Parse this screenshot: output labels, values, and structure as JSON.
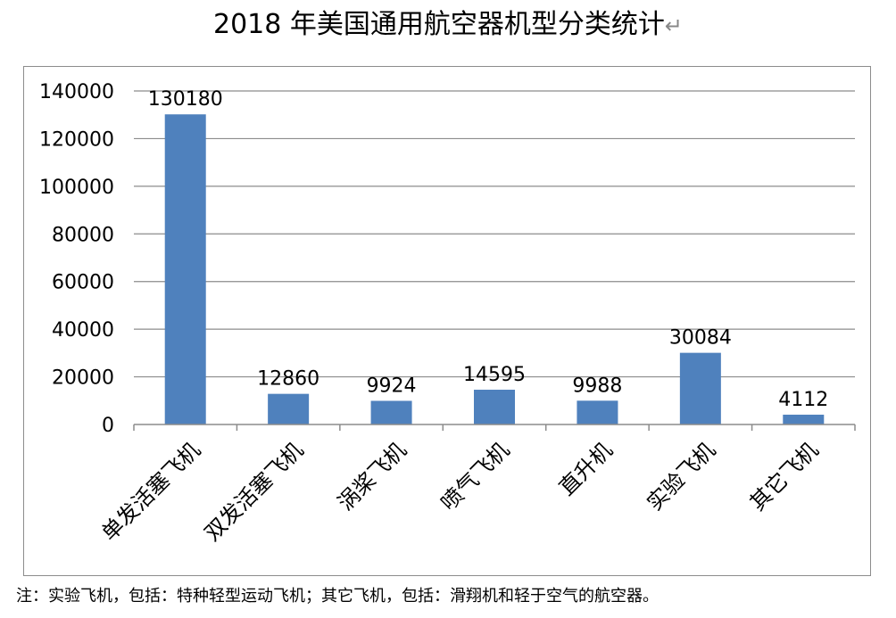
{
  "title": "2018 年美国通用航空器机型分类统计",
  "title_mark": "↵",
  "note": "注：实验飞机，包括：特种轻型运动飞机；其它飞机，包括：滑翔机和轻于空气的航空器。",
  "colors": {
    "bar": "#4f81bd",
    "grid": "#8c8c8c",
    "frame": "#8c8c8c"
  },
  "chart_data": {
    "type": "bar",
    "title": "2018 年美国通用航空器机型分类统计",
    "xlabel": "",
    "ylabel": "",
    "categories": [
      "单发活塞飞机",
      "双发活塞飞机",
      "涡桨飞机",
      "喷气飞机",
      "直升机",
      "实验飞机",
      "其它飞机"
    ],
    "values": [
      130180,
      12860,
      9924,
      14595,
      9988,
      30084,
      4112
    ],
    "ylim": [
      0,
      140000
    ],
    "yticks": [
      0,
      20000,
      40000,
      60000,
      80000,
      100000,
      120000,
      140000
    ],
    "grid": true,
    "legend": "none"
  }
}
